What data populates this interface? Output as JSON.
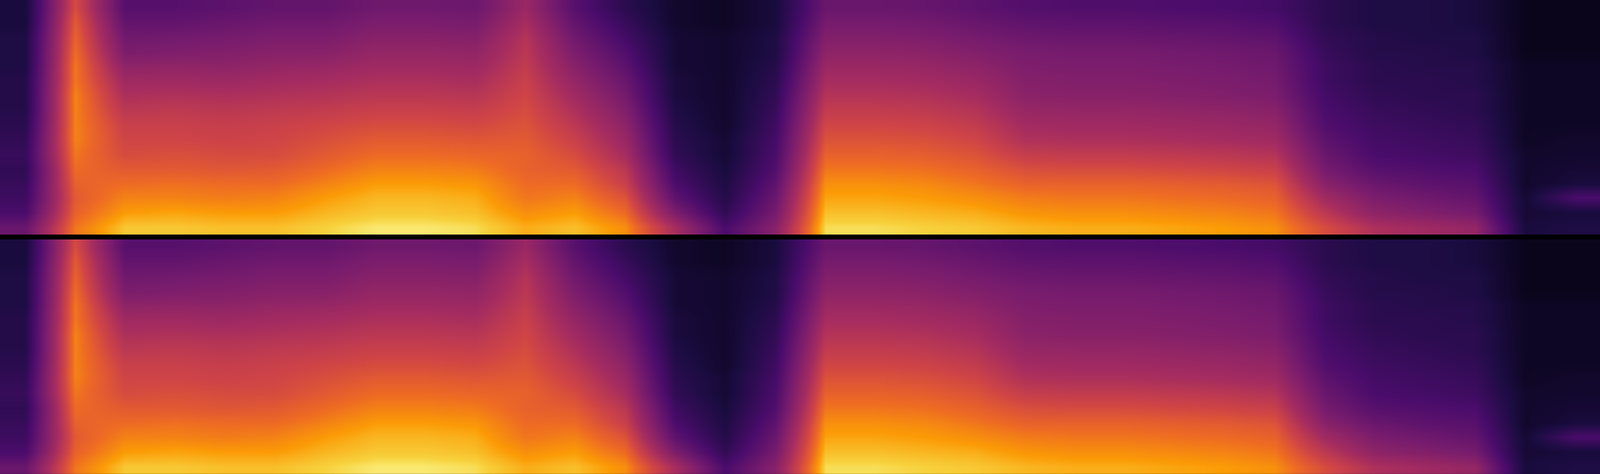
{
  "chart_data": [
    {
      "type": "heatmap",
      "tick_labels": false,
      "zlim": [
        0,
        100
      ],
      "cells": [
        [
          40,
          30,
          26,
          24,
          22,
          24,
          22,
          20,
          18,
          18,
          18,
          16,
          16,
          16,
          14,
          14
        ],
        [
          84,
          80,
          78,
          80,
          82,
          84,
          86,
          86,
          86,
          86,
          84,
          84,
          82,
          80,
          78,
          74
        ],
        [
          95,
          90,
          86,
          82,
          78,
          74,
          72,
          70,
          66,
          62,
          58,
          52,
          46,
          42,
          38,
          34
        ],
        [
          95,
          91,
          86,
          83,
          78,
          75,
          72,
          70,
          67,
          63,
          58,
          53,
          47,
          43,
          38,
          34
        ],
        [
          94,
          90,
          85,
          82,
          77,
          74,
          71,
          69,
          66,
          62,
          57,
          52,
          48,
          44,
          40,
          36
        ],
        [
          94,
          90,
          86,
          82,
          78,
          74,
          72,
          70,
          67,
          63,
          59,
          54,
          50,
          46,
          42,
          38
        ],
        [
          96,
          93,
          90,
          86,
          82,
          78,
          75,
          72,
          68,
          64,
          60,
          55,
          50,
          46,
          42,
          38
        ],
        [
          98,
          95,
          93,
          90,
          86,
          82,
          78,
          74,
          70,
          66,
          62,
          58,
          54,
          50,
          46,
          42
        ],
        [
          98,
          95,
          93,
          90,
          86,
          82,
          78,
          74,
          70,
          66,
          62,
          58,
          54,
          50,
          46,
          42
        ],
        [
          97,
          94,
          92,
          89,
          85,
          81,
          77,
          73,
          69,
          65,
          61,
          57,
          53,
          49,
          45,
          41
        ],
        [
          92,
          88,
          84,
          82,
          80,
          80,
          78,
          76,
          74,
          72,
          70,
          68,
          66,
          64,
          60,
          56
        ],
        [
          94,
          90,
          86,
          82,
          78,
          74,
          70,
          66,
          62,
          58,
          54,
          50,
          46,
          42,
          38,
          34
        ],
        [
          88,
          82,
          76,
          70,
          66,
          60,
          56,
          52,
          48,
          44,
          40,
          36,
          32,
          28,
          24,
          20
        ],
        [
          60,
          46,
          36,
          30,
          26,
          22,
          20,
          18,
          16,
          14,
          14,
          12,
          12,
          12,
          10,
          10
        ],
        [
          30,
          22,
          18,
          16,
          14,
          12,
          12,
          10,
          10,
          10,
          10,
          10,
          10,
          10,
          8,
          8
        ],
        [
          50,
          44,
          40,
          36,
          32,
          30,
          28,
          26,
          24,
          22,
          20,
          18,
          16,
          16,
          14,
          14
        ],
        [
          97,
          94,
          91,
          88,
          84,
          80,
          76,
          72,
          68,
          64,
          60,
          56,
          52,
          48,
          44,
          40
        ],
        [
          97,
          94,
          91,
          88,
          84,
          80,
          76,
          72,
          68,
          64,
          60,
          56,
          52,
          48,
          44,
          40
        ],
        [
          96,
          93,
          90,
          87,
          83,
          79,
          75,
          71,
          67,
          63,
          59,
          55,
          51,
          47,
          43,
          39
        ],
        [
          95,
          92,
          88,
          84,
          80,
          76,
          72,
          68,
          64,
          60,
          56,
          52,
          48,
          44,
          40,
          36
        ],
        [
          93,
          89,
          85,
          80,
          75,
          69,
          63,
          59,
          55,
          51,
          49,
          47,
          45,
          41,
          37,
          33
        ],
        [
          92,
          88,
          84,
          80,
          74,
          68,
          62,
          58,
          54,
          50,
          48,
          46,
          44,
          40,
          36,
          32
        ],
        [
          92,
          88,
          84,
          80,
          74,
          68,
          62,
          58,
          54,
          50,
          48,
          46,
          44,
          40,
          36,
          32
        ],
        [
          91,
          87,
          83,
          79,
          73,
          67,
          61,
          57,
          53,
          49,
          47,
          45,
          43,
          39,
          35,
          31
        ],
        [
          90,
          86,
          82,
          78,
          72,
          66,
          60,
          56,
          52,
          48,
          46,
          44,
          42,
          38,
          34,
          30
        ],
        [
          88,
          84,
          80,
          76,
          70,
          64,
          58,
          54,
          50,
          46,
          44,
          42,
          40,
          36,
          32,
          28
        ],
        [
          74,
          66,
          58,
          50,
          44,
          40,
          36,
          32,
          30,
          28,
          26,
          26,
          24,
          22,
          20,
          20
        ],
        [
          62,
          52,
          46,
          40,
          34,
          30,
          28,
          26,
          24,
          22,
          20,
          20,
          18,
          18,
          16,
          16
        ],
        [
          58,
          48,
          42,
          36,
          32,
          28,
          26,
          24,
          22,
          20,
          20,
          18,
          18,
          16,
          16,
          16
        ],
        [
          54,
          44,
          38,
          34,
          30,
          26,
          24,
          22,
          20,
          20,
          18,
          18,
          16,
          16,
          14,
          14
        ],
        [
          14,
          12,
          12,
          10,
          10,
          10,
          8,
          8,
          8,
          8,
          8,
          8,
          6,
          6,
          6,
          6
        ],
        [
          16,
          14,
          30,
          14,
          12,
          10,
          10,
          8,
          8,
          8,
          8,
          8,
          6,
          6,
          6,
          6
        ]
      ]
    },
    {
      "type": "heatmap",
      "tick_labels": false,
      "zlim": [
        0,
        100
      ],
      "cells": [
        [
          40,
          30,
          26,
          24,
          22,
          24,
          22,
          20,
          18,
          18,
          18,
          16,
          16,
          16,
          14,
          14
        ],
        [
          84,
          80,
          78,
          80,
          82,
          84,
          86,
          86,
          86,
          86,
          84,
          84,
          82,
          80,
          78,
          74
        ],
        [
          95,
          90,
          86,
          82,
          78,
          74,
          72,
          70,
          66,
          62,
          58,
          52,
          46,
          42,
          38,
          34
        ],
        [
          95,
          91,
          86,
          83,
          78,
          75,
          72,
          70,
          67,
          63,
          58,
          53,
          47,
          43,
          38,
          34
        ],
        [
          94,
          90,
          85,
          82,
          77,
          74,
          71,
          69,
          66,
          62,
          57,
          52,
          48,
          44,
          40,
          36
        ],
        [
          94,
          90,
          86,
          82,
          78,
          74,
          72,
          70,
          67,
          63,
          59,
          54,
          50,
          46,
          42,
          38
        ],
        [
          96,
          93,
          90,
          86,
          82,
          78,
          75,
          72,
          68,
          64,
          60,
          55,
          50,
          46,
          42,
          38
        ],
        [
          98,
          95,
          93,
          90,
          86,
          82,
          78,
          74,
          70,
          66,
          62,
          58,
          54,
          50,
          46,
          42
        ],
        [
          98,
          95,
          93,
          90,
          86,
          82,
          78,
          74,
          70,
          66,
          62,
          58,
          54,
          50,
          46,
          42
        ],
        [
          97,
          94,
          92,
          89,
          85,
          81,
          77,
          73,
          69,
          65,
          61,
          57,
          53,
          49,
          45,
          41
        ],
        [
          92,
          88,
          84,
          82,
          80,
          80,
          78,
          76,
          74,
          72,
          70,
          68,
          66,
          64,
          60,
          56
        ],
        [
          94,
          90,
          86,
          82,
          78,
          74,
          70,
          66,
          62,
          58,
          54,
          50,
          46,
          42,
          38,
          34
        ],
        [
          88,
          82,
          76,
          70,
          66,
          60,
          56,
          52,
          48,
          44,
          40,
          36,
          32,
          28,
          24,
          20
        ],
        [
          60,
          46,
          36,
          30,
          26,
          22,
          20,
          18,
          16,
          14,
          14,
          12,
          12,
          12,
          10,
          10
        ],
        [
          30,
          22,
          18,
          16,
          14,
          12,
          12,
          10,
          10,
          10,
          10,
          10,
          10,
          10,
          8,
          8
        ],
        [
          50,
          44,
          40,
          36,
          32,
          30,
          28,
          26,
          24,
          22,
          20,
          18,
          16,
          16,
          14,
          14
        ],
        [
          97,
          94,
          91,
          88,
          84,
          80,
          76,
          72,
          68,
          64,
          60,
          56,
          52,
          48,
          44,
          40
        ],
        [
          97,
          94,
          91,
          88,
          84,
          80,
          76,
          72,
          68,
          64,
          60,
          56,
          52,
          48,
          44,
          40
        ],
        [
          96,
          93,
          90,
          87,
          83,
          79,
          75,
          71,
          67,
          63,
          59,
          55,
          51,
          47,
          43,
          39
        ],
        [
          95,
          92,
          88,
          84,
          80,
          76,
          72,
          68,
          64,
          60,
          56,
          52,
          48,
          44,
          40,
          36
        ],
        [
          93,
          89,
          85,
          80,
          75,
          69,
          63,
          59,
          55,
          51,
          49,
          47,
          45,
          41,
          37,
          33
        ],
        [
          92,
          88,
          84,
          80,
          74,
          68,
          62,
          58,
          54,
          50,
          48,
          46,
          44,
          40,
          36,
          32
        ],
        [
          92,
          88,
          84,
          80,
          74,
          68,
          62,
          58,
          54,
          50,
          48,
          46,
          44,
          40,
          36,
          32
        ],
        [
          91,
          87,
          83,
          79,
          73,
          67,
          61,
          57,
          53,
          49,
          47,
          45,
          43,
          39,
          35,
          31
        ],
        [
          90,
          86,
          82,
          78,
          72,
          66,
          60,
          56,
          52,
          48,
          46,
          44,
          42,
          38,
          34,
          30
        ],
        [
          88,
          84,
          80,
          76,
          70,
          64,
          58,
          54,
          50,
          46,
          44,
          42,
          40,
          36,
          32,
          28
        ],
        [
          74,
          66,
          58,
          50,
          44,
          40,
          36,
          32,
          30,
          28,
          26,
          26,
          24,
          22,
          20,
          20
        ],
        [
          62,
          52,
          46,
          40,
          34,
          30,
          28,
          26,
          24,
          22,
          20,
          20,
          18,
          18,
          16,
          16
        ],
        [
          58,
          48,
          42,
          36,
          32,
          28,
          26,
          24,
          22,
          20,
          20,
          18,
          18,
          16,
          16,
          16
        ],
        [
          54,
          44,
          38,
          34,
          30,
          26,
          24,
          22,
          20,
          20,
          18,
          18,
          16,
          16,
          14,
          14
        ],
        [
          14,
          12,
          12,
          10,
          10,
          10,
          8,
          8,
          8,
          8,
          8,
          8,
          6,
          6,
          6,
          6
        ],
        [
          16,
          14,
          30,
          14,
          12,
          10,
          10,
          8,
          8,
          8,
          8,
          8,
          6,
          6,
          6,
          6
        ]
      ]
    }
  ]
}
